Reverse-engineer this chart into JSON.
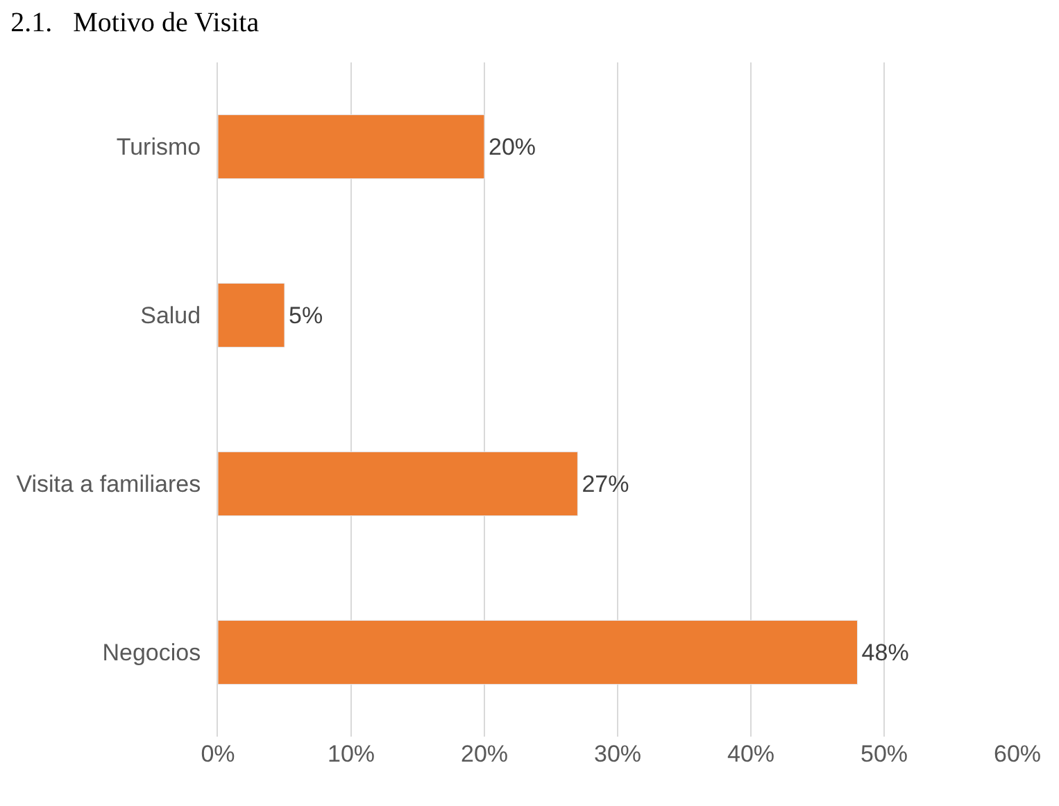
{
  "chart_data": {
    "type": "bar",
    "orientation": "horizontal",
    "title": "2.1.   Motivo de Visita",
    "categories": [
      "Turismo",
      "Salud",
      "Visita a familiares",
      "Negocios"
    ],
    "values": [
      20,
      5,
      27,
      48
    ],
    "value_labels": [
      "20%",
      "5%",
      "27%",
      "48%"
    ],
    "color": "#ed7d31",
    "xlim": [
      0,
      60
    ],
    "xticks": [
      {
        "value": 0,
        "label": "0%"
      },
      {
        "value": 10,
        "label": "10%"
      },
      {
        "value": 20,
        "label": "20%"
      },
      {
        "value": 30,
        "label": "30%"
      },
      {
        "value": 40,
        "label": "40%"
      },
      {
        "value": 50,
        "label": "50%"
      },
      {
        "value": 60,
        "label": "60%"
      }
    ],
    "grid": "x",
    "legend": false
  }
}
